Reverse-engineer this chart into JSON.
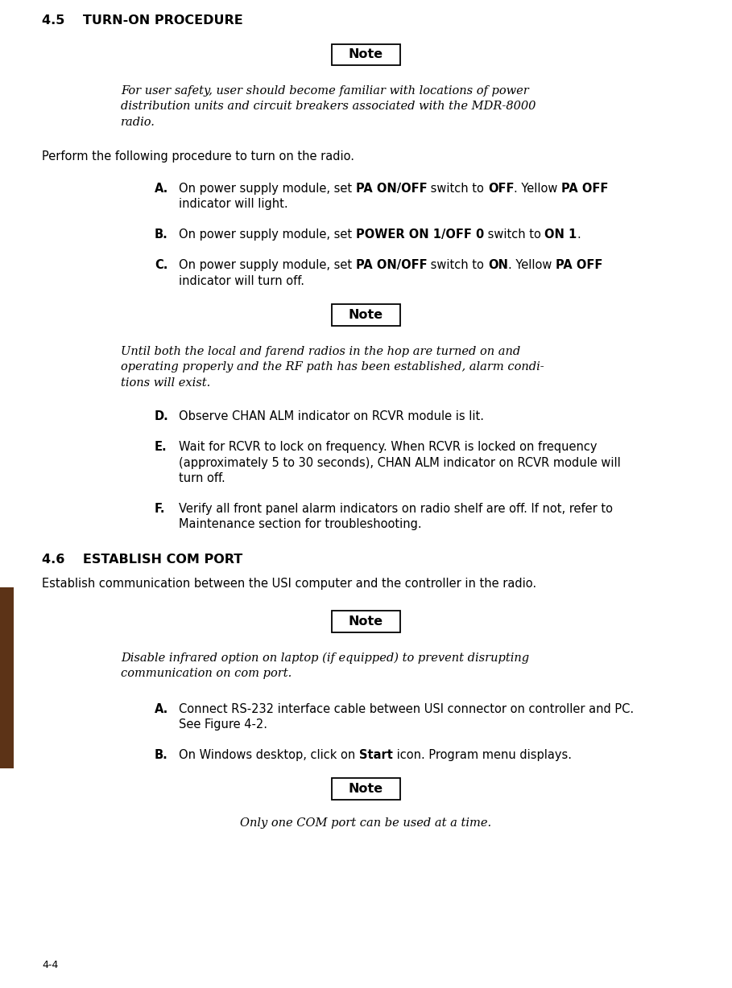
{
  "page_width": 9.09,
  "page_height": 12.28,
  "dpi": 100,
  "bg_color": "#ffffff",
  "sidebar_color": "#5C3317",
  "page_num": "4-4",
  "sec1_header": "4.5    TURN-ON PROCEDURE",
  "sec2_header": "4.6    ESTABLISH COM PORT",
  "note_word": "Note",
  "note1_lines": [
    "For user safety, user should become familiar with locations of power",
    "distribution units and circuit breakers associated with the MDR-8000",
    "radio."
  ],
  "intro": "Perform the following procedure to turn on the radio.",
  "stepA_label": "A.",
  "stepA_line1": [
    [
      "On power supply module, set ",
      false
    ],
    [
      "PA ON/OFF",
      true
    ],
    [
      " switch to ",
      false
    ],
    [
      "OFF",
      true
    ],
    [
      ". Yellow ",
      false
    ],
    [
      "PA OFF",
      true
    ]
  ],
  "stepA_line2": "indicator will light.",
  "stepB_label": "B.",
  "stepB_line1": [
    [
      "On power supply module, set ",
      false
    ],
    [
      "POWER ON 1/OFF 0",
      true
    ],
    [
      " switch to ",
      false
    ],
    [
      "ON 1",
      true
    ],
    [
      ".",
      false
    ]
  ],
  "stepC_label": "C.",
  "stepC_line1": [
    [
      "On power supply module, set ",
      false
    ],
    [
      "PA ON/OFF",
      true
    ],
    [
      " switch to ",
      false
    ],
    [
      "ON",
      true
    ],
    [
      ". Yellow ",
      false
    ],
    [
      "PA OFF",
      true
    ]
  ],
  "stepC_line2": "indicator will turn off.",
  "note2_lines": [
    "Until both the local and farend radios in the hop are turned on and",
    "operating properly and the RF path has been established, alarm condi-",
    "tions will exist."
  ],
  "stepD_label": "D.",
  "stepD_text": "Observe CHAN ALM indicator on RCVR module is lit.",
  "stepE_label": "E.",
  "stepE_lines": [
    "Wait for RCVR to lock on frequency. When RCVR is locked on frequency",
    "(approximately 5 to 30 seconds), CHAN ALM indicator on RCVR module will",
    "turn off."
  ],
  "stepF_label": "F.",
  "stepF_lines": [
    "Verify all front panel alarm indicators on radio shelf are off. If not, refer to",
    "Maintenance section for troubleshooting."
  ],
  "sec2_intro": "Establish communication between the USI computer and the controller in the radio.",
  "note3_lines": [
    "Disable infrared option on laptop (if equipped) to prevent disrupting",
    "communication on com port."
  ],
  "stepA2_label": "A.",
  "stepA2_lines": [
    "Connect RS-232 interface cable between USI connector on controller and PC.",
    "See Figure 4‑2."
  ],
  "stepB2_label": "B.",
  "stepB2_line1": [
    [
      "On Windows desktop, click on ",
      false
    ],
    [
      "Start",
      true
    ],
    [
      " icon. Program menu displays.",
      false
    ]
  ],
  "note4_text": "Only one COM port can be used at a time."
}
